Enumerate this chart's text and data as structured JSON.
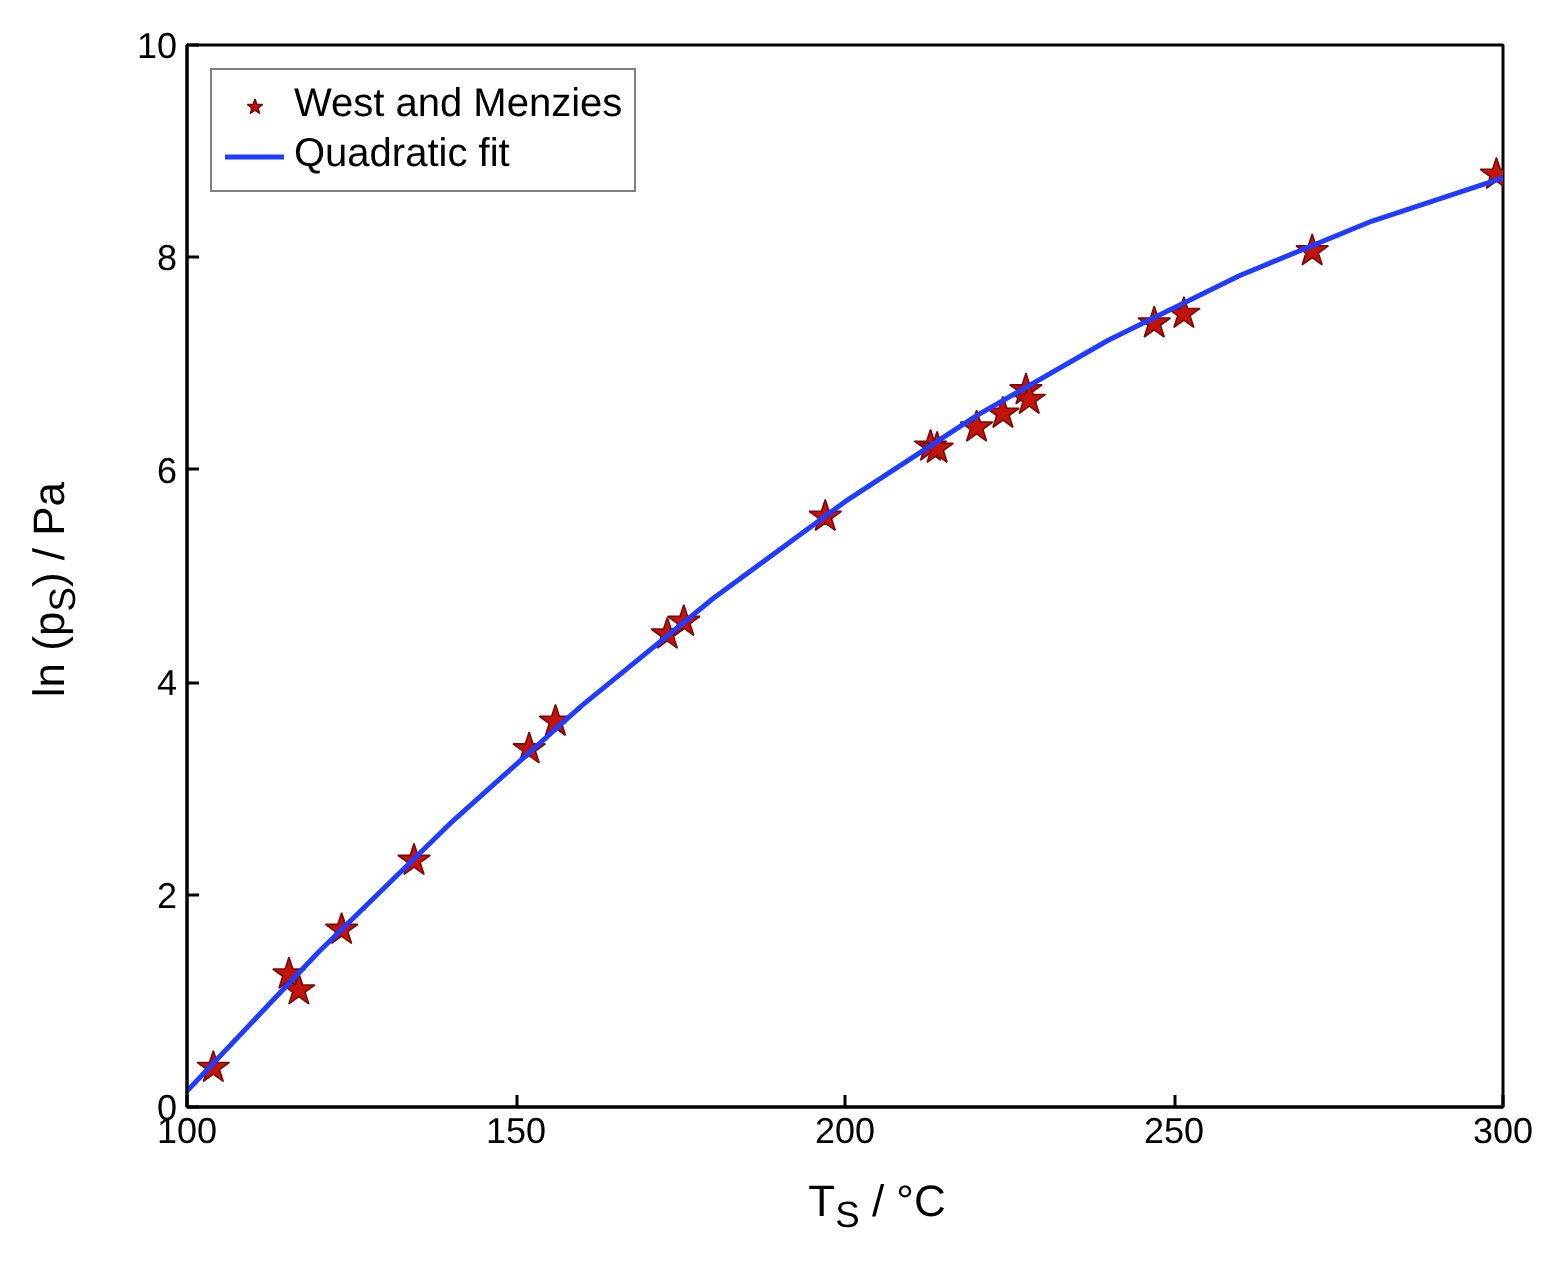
{
  "chart_data": {
    "type": "scatter",
    "xlabel": "T$_{S}$ / °C",
    "ylabel": "ln (p$_{S}$) / Pa",
    "xlim": [
      100,
      300
    ],
    "ylim": [
      0,
      10
    ],
    "xticks": [
      100,
      150,
      200,
      250,
      300
    ],
    "yticks": [
      0,
      2,
      4,
      6,
      8,
      10
    ],
    "grid": false,
    "legend": "top left",
    "marker": "star",
    "series": [
      {
        "name": "West and Menzies",
        "color": "#c0140c",
        "x": [
          104,
          115.5,
          117,
          123.5,
          134.5,
          152,
          156,
          173,
          175.5,
          197,
          213,
          214,
          220,
          224,
          227.5,
          228,
          247,
          251.5,
          271,
          299
        ],
        "values": [
          0.37,
          1.25,
          1.1,
          1.67,
          2.32,
          3.37,
          3.63,
          4.45,
          4.57,
          5.56,
          6.22,
          6.2,
          6.4,
          6.53,
          6.75,
          6.66,
          7.38,
          7.47,
          8.06,
          8.78
        ]
      },
      {
        "name": "Quadratic fit",
        "type": "line",
        "marker": "none",
        "line_style": "solid",
        "color": "#1f3cff",
        "x": [
          100,
          120,
          140,
          160,
          180,
          200,
          220,
          240,
          260,
          280,
          300
        ],
        "values": [
          0.15,
          1.46,
          2.67,
          3.78,
          4.79,
          5.7,
          6.51,
          7.22,
          7.83,
          8.34,
          8.75
        ]
      }
    ]
  }
}
